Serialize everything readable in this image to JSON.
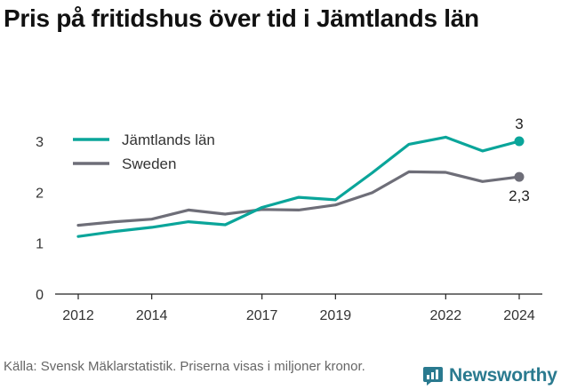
{
  "title": "Pris på fritidshus över tid i Jämtlands län",
  "source": "Källa: Svensk Mäklarstatistik. Priserna visas i miljoner kronor.",
  "brand": {
    "name": "Newsworthy",
    "color": "#2a7a8f",
    "icon": "newsworthy-logo-icon"
  },
  "chart_data": {
    "type": "line",
    "x_ticks": [
      2012,
      2014,
      2017,
      2019,
      2022,
      2024
    ],
    "y_ticks": [
      0,
      1,
      2,
      3
    ],
    "xlim": [
      2012,
      2024
    ],
    "ylim": [
      0,
      3
    ],
    "grid": false,
    "legend": "top-left",
    "series": [
      {
        "name": "Jämtlands län",
        "color": "#0aa59a",
        "x": [
          2012,
          2013,
          2014,
          2015,
          2016,
          2017,
          2018,
          2019,
          2020,
          2021,
          2022,
          2023,
          2024
        ],
        "values": [
          1.13,
          1.23,
          1.31,
          1.42,
          1.36,
          1.7,
          1.9,
          1.85,
          2.38,
          2.94,
          3.08,
          2.81,
          3.0
        ],
        "end_label": "3"
      },
      {
        "name": "Sweden",
        "color": "#6e6e78",
        "x": [
          2012,
          2013,
          2014,
          2015,
          2016,
          2017,
          2018,
          2019,
          2020,
          2021,
          2022,
          2023,
          2024
        ],
        "values": [
          1.35,
          1.42,
          1.47,
          1.65,
          1.57,
          1.66,
          1.65,
          1.75,
          1.99,
          2.4,
          2.39,
          2.21,
          2.3
        ],
        "end_label": "2,3"
      }
    ]
  }
}
